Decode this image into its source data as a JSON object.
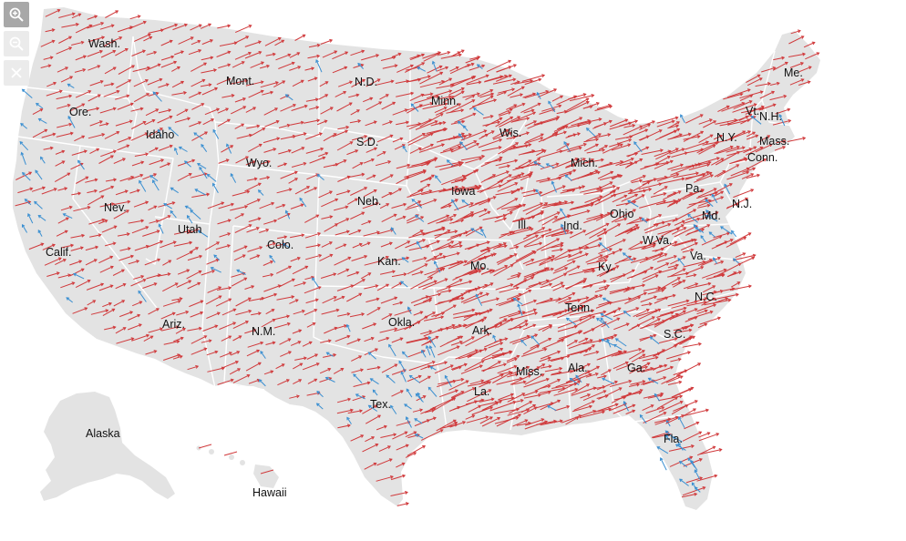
{
  "controls": {
    "zoom_in": "zoom-in-icon",
    "zoom_out": "zoom-out-icon",
    "close": "close-icon"
  },
  "colors": {
    "land": "#e3e3e3",
    "border": "#ffffff",
    "shift_right": "#d0393b",
    "shift_left": "#3a8fd1"
  },
  "states": {
    "wash": "Wash.",
    "ore": "Ore.",
    "calif": "Calif.",
    "idaho": "Idaho",
    "nev": "Nev.",
    "mont": "Mont.",
    "wyo": "Wyo.",
    "utah": "Utah",
    "ariz": "Ariz.",
    "colo": "Colo.",
    "nm": "N.M.",
    "nd": "N.D.",
    "sd": "S.D.",
    "neb": "Neb.",
    "kan": "Kan.",
    "okla": "Okla.",
    "tex": "Tex.",
    "minn": "Minn.",
    "iowa": "Iowa",
    "mo": "Mo.",
    "ark": "Ark.",
    "la": "La.",
    "wis": "Wis.",
    "ill": "Ill.",
    "mich": "Mich.",
    "ind": "Ind.",
    "ohio": "Ohio",
    "ky": "Ky.",
    "tenn": "Tenn.",
    "miss": "Miss.",
    "ala": "Ala.",
    "ga": "Ga.",
    "fla": "Fla.",
    "sc": "S.C.",
    "nc": "N.C.",
    "va": "Va.",
    "wva": "W.Va.",
    "pa": "Pa.",
    "ny": "N.Y.",
    "vt": "Vt.",
    "nh": "N.H.",
    "me": "Me.",
    "mass": "Mass.",
    "conn": "Conn.",
    "nj": "N.J.",
    "md": "Md.",
    "alaska": "Alaska",
    "hawaii": "Hawaii"
  }
}
